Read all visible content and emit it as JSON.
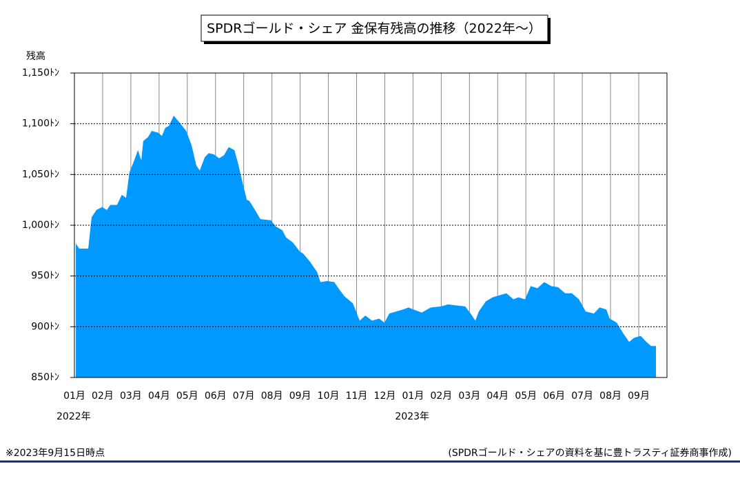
{
  "chart_data": {
    "type": "area",
    "title": "SPDRゴールド・シェア 金保有残高の推移（2022年～）",
    "y_label": "残高",
    "note": "※2023年9月15日時点",
    "source": "(SPDRゴールド・シェアの資料を基に豊トラスティ証券商事作成)",
    "color": "#0099ff",
    "grid": true,
    "xlim": [
      0,
      21
    ],
    "ylim": [
      850,
      1150
    ],
    "xticks": [
      {
        "value": 0,
        "label": "01月"
      },
      {
        "value": 1,
        "label": "02月"
      },
      {
        "value": 2,
        "label": "03月"
      },
      {
        "value": 3,
        "label": "04月"
      },
      {
        "value": 4,
        "label": "05月"
      },
      {
        "value": 5,
        "label": "06月"
      },
      {
        "value": 6,
        "label": "07月"
      },
      {
        "value": 7,
        "label": "08月"
      },
      {
        "value": 8,
        "label": "09月"
      },
      {
        "value": 9,
        "label": "10月"
      },
      {
        "value": 10,
        "label": "11月"
      },
      {
        "value": 11,
        "label": "12月"
      },
      {
        "value": 12,
        "label": "01月"
      },
      {
        "value": 13,
        "label": "02月"
      },
      {
        "value": 14,
        "label": "03月"
      },
      {
        "value": 15,
        "label": "04月"
      },
      {
        "value": 16,
        "label": "05月"
      },
      {
        "value": 17,
        "label": "06月"
      },
      {
        "value": 18,
        "label": "07月"
      },
      {
        "value": 19,
        "label": "08月"
      },
      {
        "value": 20,
        "label": "09月"
      }
    ],
    "year_labels": [
      {
        "value": 0,
        "label": "2022年"
      },
      {
        "value": 12,
        "label": "2023年"
      }
    ],
    "yticks": [
      {
        "value": 850,
        "label": "850ﾄﾝ"
      },
      {
        "value": 900,
        "label": "900ﾄﾝ"
      },
      {
        "value": 950,
        "label": "950ﾄﾝ"
      },
      {
        "value": 1000,
        "label": "1,000ﾄﾝ"
      },
      {
        "value": 1050,
        "label": "1,050ﾄﾝ"
      },
      {
        "value": 1100,
        "label": "1,100ﾄﾝ"
      },
      {
        "value": 1150,
        "label": "1,150ﾄﾝ"
      }
    ],
    "x": [
      0.05,
      0.17,
      0.49,
      0.61,
      0.78,
      0.98,
      1.15,
      1.27,
      1.51,
      1.68,
      1.83,
      1.95,
      2.12,
      2.25,
      2.37,
      2.44,
      2.61,
      2.74,
      2.98,
      3.1,
      3.22,
      3.35,
      3.52,
      3.76,
      3.96,
      4.15,
      4.32,
      4.44,
      4.62,
      4.76,
      4.93,
      5.13,
      5.3,
      5.47,
      5.67,
      5.79,
      5.96,
      6.11,
      6.2,
      6.4,
      6.59,
      6.96,
      7.13,
      7.37,
      7.5,
      7.74,
      7.99,
      8.11,
      8.35,
      8.6,
      8.72,
      8.96,
      9.21,
      9.38,
      9.57,
      9.87,
      10.01,
      10.11,
      10.31,
      10.55,
      10.8,
      10.99,
      11.16,
      11.4,
      11.65,
      11.84,
      12.01,
      12.31,
      12.63,
      12.99,
      13.24,
      13.53,
      13.85,
      14.04,
      14.21,
      14.33,
      14.58,
      14.82,
      15.07,
      15.31,
      15.56,
      15.73,
      15.97,
      16.17,
      16.41,
      16.65,
      16.9,
      17.14,
      17.39,
      17.63,
      17.88,
      18.12,
      18.41,
      18.61,
      18.85,
      18.97,
      19.22,
      19.46,
      19.66,
      19.83,
      20.07,
      20.27,
      20.44,
      20.61
    ],
    "values": [
      982,
      977,
      977,
      1008,
      1015,
      1018,
      1015,
      1020,
      1020,
      1030,
      1027,
      1052,
      1064,
      1074,
      1064,
      1083,
      1087,
      1093,
      1091,
      1088,
      1096,
      1098,
      1108,
      1100,
      1093,
      1079,
      1059,
      1054,
      1067,
      1071,
      1070,
      1066,
      1069,
      1077,
      1074,
      1062,
      1042,
      1025,
      1024,
      1015,
      1006,
      1005,
      999,
      995,
      988,
      983,
      974,
      972,
      964,
      954,
      944,
      945,
      944,
      937,
      930,
      923,
      913,
      906,
      911,
      906,
      908,
      904,
      913,
      915,
      917,
      919,
      917,
      914,
      919,
      920,
      922,
      921,
      920,
      913,
      906,
      915,
      925,
      929,
      931,
      933,
      927,
      929,
      927,
      940,
      938,
      944,
      940,
      939,
      933,
      933,
      927,
      915,
      913,
      919,
      917,
      908,
      904,
      893,
      885,
      889,
      891,
      885,
      881,
      881
    ]
  }
}
